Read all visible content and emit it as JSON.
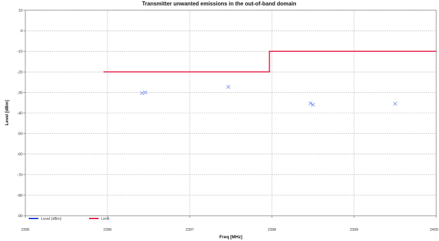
{
  "chart_data": {
    "type": "line",
    "title": "Transmitter unwanted emissions in the out-of-band domain",
    "xlabel": "Freq [MHz]",
    "ylabel": "Level [dBm]",
    "xlim": [
      2395,
      2400
    ],
    "ylim": [
      -90,
      10
    ],
    "x_ticks": [
      "2395",
      "2396",
      "2397",
      "2398",
      "2399",
      "2400"
    ],
    "y_ticks": [
      "10",
      "0",
      "-10",
      "-20",
      "-30",
      "-40",
      "-50",
      "-60",
      "-70",
      "-80",
      "-90"
    ],
    "grid": true,
    "legend_placement": "bottom-left",
    "series": [
      {
        "name": "Level (dBm)",
        "color": "#1f3fd8",
        "marker": "x",
        "marker_color": "#7b93f2",
        "points": [
          {
            "x": 2396.42,
            "y": -30.3
          },
          {
            "x": 2396.46,
            "y": -30.0
          },
          {
            "x": 2397.47,
            "y": -27.3
          },
          {
            "x": 2398.47,
            "y": -35.3
          },
          {
            "x": 2398.5,
            "y": -36.0
          },
          {
            "x": 2399.5,
            "y": -35.5
          }
        ]
      },
      {
        "name": "Limit",
        "color": "#e8224a",
        "points": [
          {
            "x": 2395.95,
            "y": -20
          },
          {
            "x": 2397.97,
            "y": -20
          },
          {
            "x": 2397.97,
            "y": -10
          },
          {
            "x": 2400,
            "y": -10
          }
        ]
      }
    ]
  }
}
